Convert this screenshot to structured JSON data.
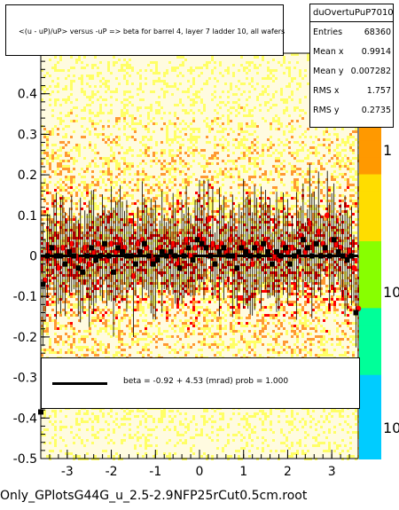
{
  "title": "<(u - uP)/uP> versus -uP => beta for barrel 4, layer 7 ladder 10, all wafers",
  "stats": {
    "name": "duOvertuPuP7010",
    "rows": [
      {
        "label": "Entries",
        "value": "68360"
      },
      {
        "label": "Mean x",
        "value": "0.9914"
      },
      {
        "label": "Mean y",
        "value": "0.007282"
      },
      {
        "label": "RMS x",
        "value": "1.757"
      },
      {
        "label": "RMS y",
        "value": "0.2735"
      }
    ]
  },
  "fit": {
    "text": "beta =    -0.92 +  4.53 (mrad) prob = 1.000"
  },
  "footer": "Only_GPlotsG44G_u_2.5-2.9NFP25rCut0.5cm.root",
  "colors": {
    "background": "#ffffff",
    "heat_low": "#ffff66",
    "heat_mid": "#ff9933",
    "heat_high": "#ff0000",
    "palette_high": "#ff9900",
    "palette_mid": "#88ff00",
    "palette_low": "#00ccff",
    "marker_red": "#ff0000",
    "marker_black": "#000000"
  },
  "chart_data": {
    "type": "scatter",
    "xlim": [
      -3.6,
      3.6
    ],
    "ylim": [
      -0.5,
      0.5
    ],
    "x_ticks": [
      -3,
      -2,
      -1,
      0,
      1,
      2,
      3
    ],
    "y_ticks": [
      -0.5,
      -0.4,
      -0.3,
      -0.2,
      -0.1,
      0,
      0.1,
      0.2,
      0.3,
      0.4
    ],
    "x_tick_labels": [
      "-3",
      "-2",
      "-1",
      "0",
      "1",
      "2",
      "3"
    ],
    "y_tick_labels": [
      "-0.5",
      "-0.4",
      "-0.3",
      "-0.2",
      "-0.1",
      "0",
      "0.1",
      "0.2",
      "0.3",
      "0.4"
    ],
    "palette_labels": [
      "1",
      "10",
      "10"
    ],
    "fit_line": {
      "slope": 0,
      "intercept": 0.0
    },
    "series": [
      {
        "marker": "circle",
        "color": "#ff0000",
        "x": [
          -3.5,
          -3.4,
          -3.3,
          -3.2,
          -3.1,
          -3.0,
          -2.9,
          -2.8,
          -2.7,
          -2.6,
          -2.5,
          -2.4,
          -2.3,
          -2.2,
          -2.1,
          -2.0,
          -1.9,
          -1.8,
          -1.7,
          -1.6,
          -1.5,
          -1.4,
          -1.3,
          -1.2,
          -1.1,
          -1.0,
          -0.9,
          -0.8,
          -0.7,
          -0.6,
          -0.5,
          -0.4,
          -0.3,
          -0.2,
          -0.1,
          0.0,
          0.1,
          0.2,
          0.3,
          0.4,
          0.5,
          0.6,
          0.7,
          0.8,
          0.9,
          1.0,
          1.1,
          1.2,
          1.3,
          1.4,
          1.5,
          1.6,
          1.7,
          1.8,
          1.9,
          2.0,
          2.1,
          2.2,
          2.3,
          2.4,
          2.5,
          2.6,
          2.7,
          2.8,
          2.9,
          3.0,
          3.1,
          3.2,
          3.3,
          3.4,
          3.5,
          3.6
        ],
        "y": [
          -0.06,
          0.01,
          0.02,
          -0.03,
          0.02,
          0.01,
          0.03,
          0.0,
          -0.01,
          0.02,
          -0.02,
          0.01,
          0.03,
          0.02,
          -0.01,
          0.03,
          0.01,
          0.04,
          0.02,
          0.0,
          -0.05,
          0.03,
          0.04,
          0.02,
          0.0,
          -0.01,
          0.02,
          0.01,
          0.0,
          0.03,
          -0.02,
          0.01,
          0.04,
          0.0,
          0.02,
          0.05,
          0.04,
          0.09,
          0.03,
          0.02,
          0.03,
          0.01,
          0.04,
          0.0,
          0.02,
          0.03,
          0.01,
          -0.02,
          0.03,
          0.02,
          0.04,
          0.02,
          0.0,
          -0.01,
          0.03,
          0.01,
          0.02,
          0.0,
          0.05,
          0.01,
          0.08,
          0.03,
          0.06,
          0.03,
          0.1,
          0.04,
          0.03,
          0.02,
          0.0,
          0.01,
          -0.03,
          -0.13
        ]
      },
      {
        "marker": "square",
        "color": "#000000",
        "x": [
          -3.55,
          -3.45,
          -3.35,
          -3.25,
          -3.15,
          -3.05,
          -2.95,
          -2.85,
          -2.75,
          -2.65,
          -2.55,
          -2.45,
          -2.35,
          -2.25,
          -2.15,
          -2.05,
          -1.95,
          -1.85,
          -1.75,
          -1.65,
          -1.55,
          -1.45,
          -1.35,
          -1.25,
          -1.15,
          -1.05,
          -0.95,
          -0.85,
          -0.75,
          -0.65,
          -0.55,
          -0.45,
          -0.35,
          -0.25,
          -0.15,
          -0.05,
          0.05,
          0.15,
          0.25,
          0.35,
          0.45,
          0.55,
          0.65,
          0.75,
          0.85,
          0.95,
          1.05,
          1.15,
          1.25,
          1.35,
          1.45,
          1.55,
          1.65,
          1.75,
          1.85,
          1.95,
          2.05,
          2.15,
          2.25,
          2.35,
          2.45,
          2.55,
          2.65,
          2.75,
          2.85,
          2.95,
          3.05,
          3.15,
          3.25,
          3.35,
          3.45,
          3.55
        ],
        "y": [
          -0.07,
          0.0,
          0.02,
          0.0,
          0.0,
          -0.02,
          0.01,
          0.0,
          -0.03,
          -0.04,
          0.0,
          0.02,
          -0.01,
          0.0,
          0.03,
          0.0,
          -0.04,
          0.02,
          0.01,
          0.0,
          0.0,
          -0.02,
          0.01,
          0.03,
          0.0,
          -0.02,
          -0.01,
          0.01,
          0.0,
          0.01,
          0.0,
          -0.03,
          0.0,
          0.02,
          -0.01,
          0.04,
          0.03,
          0.02,
          0.0,
          -0.02,
          0.01,
          0.02,
          0.0,
          0.0,
          -0.03,
          0.02,
          0.01,
          0.0,
          0.02,
          0.0,
          0.03,
          0.01,
          -0.02,
          0.01,
          0.0,
          0.02,
          -0.02,
          0.0,
          0.01,
          0.04,
          0.02,
          0.0,
          0.03,
          0.0,
          0.02,
          0.0,
          0.04,
          0.01,
          0.0,
          -0.01,
          0.0,
          -0.14
        ]
      },
      {
        "marker": "square",
        "color": "#000000",
        "x": [
          -3.6
        ],
        "y": [
          -0.385
        ]
      }
    ]
  }
}
